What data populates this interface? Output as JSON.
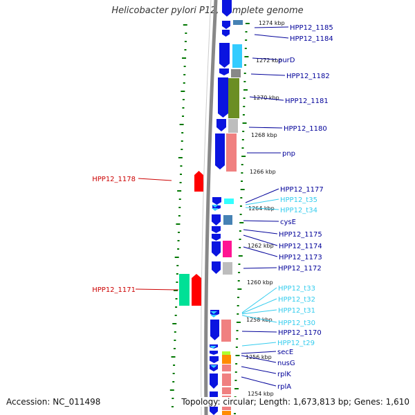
{
  "title": "Helicobacter pylori P12, complete genome",
  "accession": "Accession: NC_011498",
  "summary": "Topology: circular; Length: 1,673,813 bp; Genes: 1,610",
  "colors": {
    "protein_gene": "#0a14e0",
    "rna_gene": "#33ccee",
    "left_label": "#cc0000",
    "right_label": "#000099",
    "tick": "#007700",
    "axis_line": "#888888"
  },
  "scale_labels": [
    "1274 kbp",
    "1272 kbp",
    "1270 kbp",
    "1268 kbp",
    "1266 kbp",
    "1264 kbp",
    "1262 kbp",
    "1260 kbp",
    "1258 kbp",
    "1256 kbp",
    "1254 kbp"
  ],
  "left_features": [
    {
      "label": "HPP12_1178"
    },
    {
      "label": "HPP12_1171"
    }
  ],
  "right_features": [
    {
      "label": "HPP12_1185",
      "type": "gene"
    },
    {
      "label": "HPP12_1184",
      "type": "gene"
    },
    {
      "label": "purD",
      "type": "gene"
    },
    {
      "label": "HPP12_1182",
      "type": "gene"
    },
    {
      "label": "HPP12_1181",
      "type": "gene"
    },
    {
      "label": "HPP12_1180",
      "type": "gene"
    },
    {
      "label": "pnp",
      "type": "gene"
    },
    {
      "label": "HPP12_1177",
      "type": "gene"
    },
    {
      "label": "HPP12_t35",
      "type": "rna"
    },
    {
      "label": "HPP12_t34",
      "type": "rna"
    },
    {
      "label": "cysE",
      "type": "gene"
    },
    {
      "label": "HPP12_1175",
      "type": "gene"
    },
    {
      "label": "HPP12_1174",
      "type": "gene"
    },
    {
      "label": "HPP12_1173",
      "type": "gene"
    },
    {
      "label": "HPP12_1172",
      "type": "gene"
    },
    {
      "label": "HPP12_t33",
      "type": "rna"
    },
    {
      "label": "HPP12_t32",
      "type": "rna"
    },
    {
      "label": "HPP12_t31",
      "type": "rna"
    },
    {
      "label": "HPP12_t30",
      "type": "rna"
    },
    {
      "label": "HPP12_1170",
      "type": "gene"
    },
    {
      "label": "HPP12_t29",
      "type": "rna"
    },
    {
      "label": "secE",
      "type": "gene"
    },
    {
      "label": "nusG",
      "type": "gene"
    },
    {
      "label": "rplK",
      "type": "gene"
    },
    {
      "label": "rplA",
      "type": "gene"
    }
  ]
}
